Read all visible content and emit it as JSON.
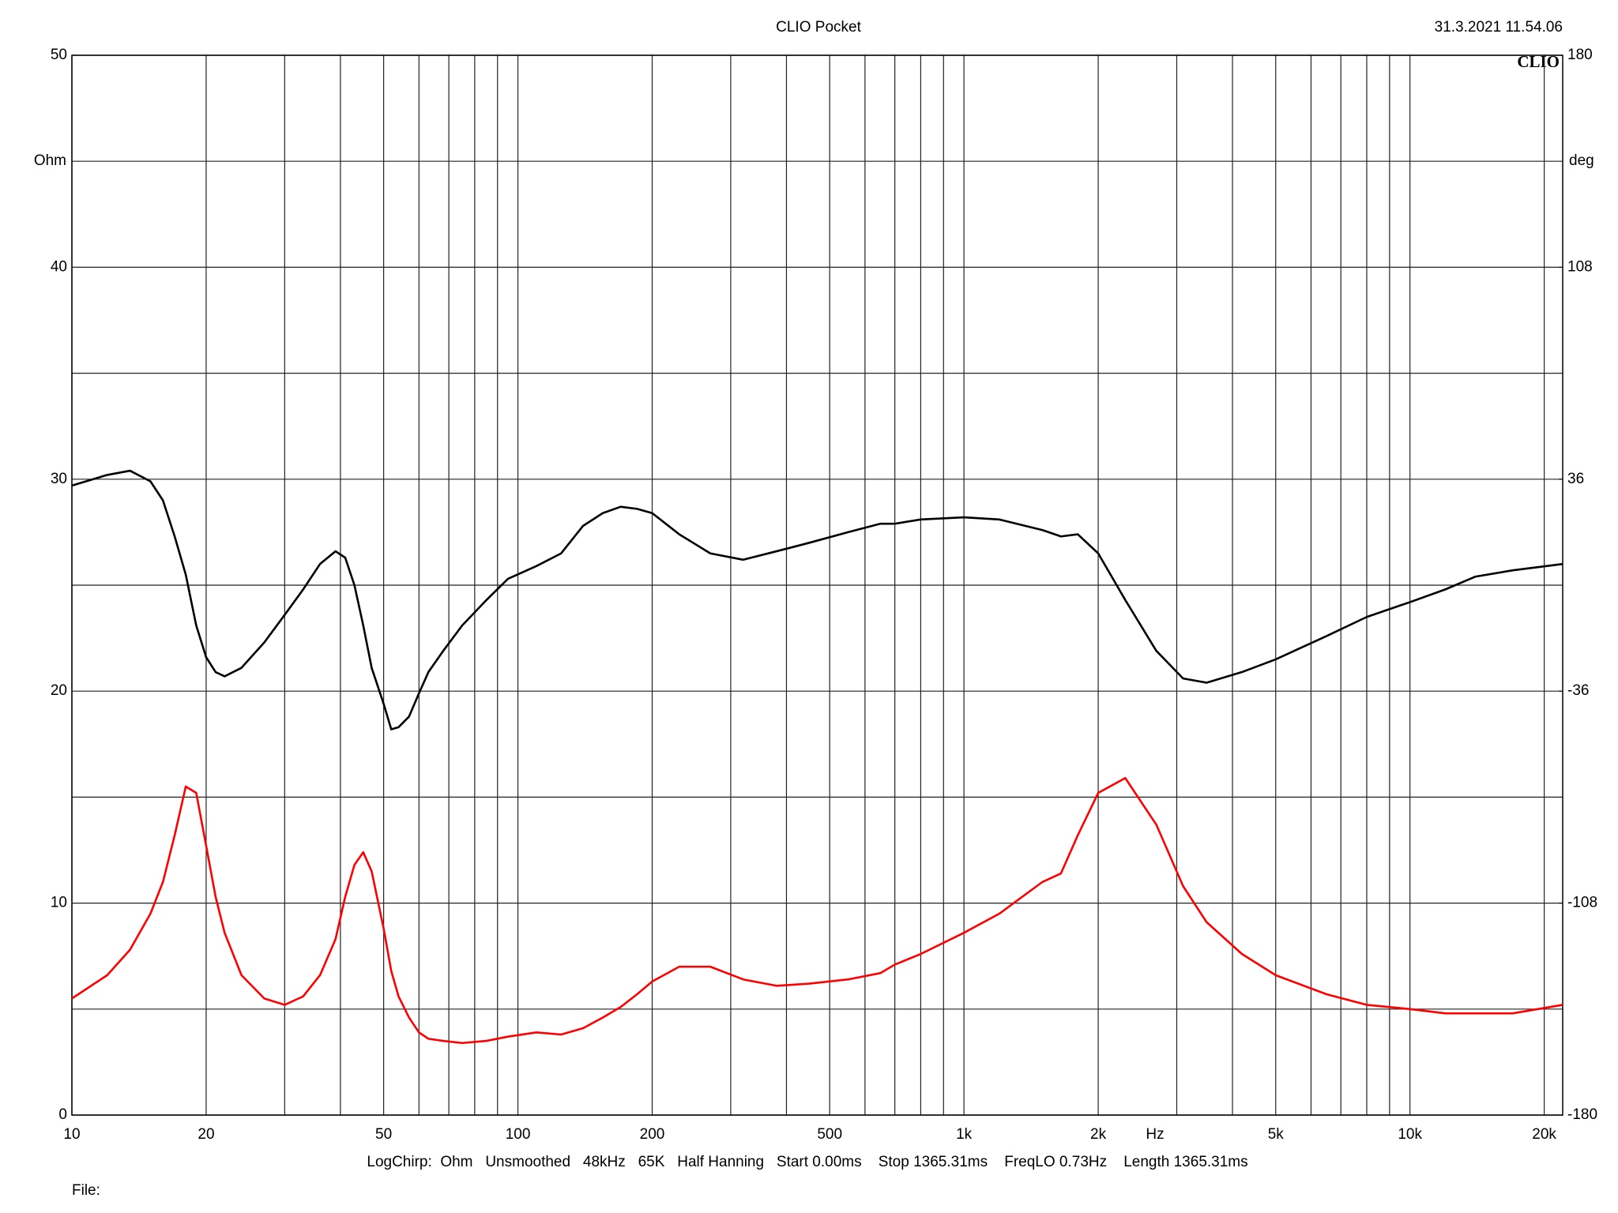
{
  "chart_data": {
    "type": "line",
    "title": "CLIO Pocket",
    "timestamp": "31.3.2021 11.54.06",
    "logo": "CLIO",
    "y_label": "Ohm",
    "y2_label": "deg",
    "x_label": "Hz",
    "footer": "LogChirp:  Ohm   Unsmoothed   48kHz   65K   Half Hanning   Start 0.00ms    Stop 1365.31ms    FreqLO 0.73Hz    Length 1365.31ms",
    "file_label": "File:",
    "xscale": "log",
    "grid": true,
    "xlim": [
      10,
      22000
    ],
    "xticks": [
      10,
      20,
      50,
      100,
      200,
      500,
      {
        "value": 1000,
        "label": "1k"
      },
      {
        "value": 2000,
        "label": "2k"
      },
      {
        "value": 5000,
        "label": "5k"
      },
      {
        "value": 10000,
        "label": "10k"
      },
      {
        "value": 20000,
        "label": "20k"
      }
    ],
    "xgrid": [
      30,
      40,
      60,
      70,
      80,
      90,
      300,
      400,
      600,
      700,
      800,
      900,
      3000,
      4000,
      6000,
      7000,
      8000,
      9000
    ],
    "ylim": [
      0,
      50
    ],
    "yticks": [
      0,
      10,
      20,
      30,
      40,
      50
    ],
    "ygrid": [
      5,
      15,
      25,
      35,
      45
    ],
    "y2lim": [
      -180,
      180
    ],
    "y2ticks": [
      -180,
      -108,
      -36,
      36,
      108,
      180
    ],
    "x": [
      10,
      12,
      13.5,
      15,
      16,
      17,
      18,
      19,
      20,
      21,
      22,
      24,
      27,
      30,
      33,
      36,
      39,
      41,
      43,
      45,
      47,
      50,
      52,
      54,
      57,
      60,
      63,
      68,
      75,
      85,
      95,
      110,
      125,
      140,
      155,
      170,
      185,
      200,
      230,
      270,
      320,
      380,
      450,
      550,
      650,
      700,
      800,
      1000,
      1200,
      1500,
      1650,
      1800,
      2000,
      2300,
      2700,
      3100,
      3500,
      4200,
      5000,
      6500,
      8000,
      10000,
      12000,
      14000,
      17000,
      22000
    ],
    "series": [
      {
        "color": "#000000",
        "values": [
          29.7,
          30.2,
          30.4,
          29.9,
          29.0,
          27.3,
          25.5,
          23.1,
          21.6,
          20.9,
          20.7,
          21.1,
          22.3,
          23.6,
          24.8,
          26.0,
          26.6,
          26.3,
          25.0,
          23.1,
          21.1,
          19.4,
          18.2,
          18.3,
          18.8,
          19.9,
          20.9,
          21.9,
          23.1,
          24.3,
          25.3,
          25.9,
          26.5,
          27.8,
          28.4,
          28.7,
          28.6,
          28.4,
          27.4,
          26.5,
          26.2,
          26.6,
          27.0,
          27.5,
          27.9,
          27.9,
          28.1,
          28.2,
          28.1,
          27.6,
          27.3,
          27.4,
          26.5,
          24.3,
          21.9,
          20.6,
          20.4,
          20.9,
          21.5,
          22.6,
          23.5,
          24.2,
          24.8,
          25.4,
          25.7,
          26.0
        ]
      },
      {
        "color": "#ff0000",
        "values": [
          5.5,
          6.6,
          7.8,
          9.5,
          11.0,
          13.2,
          15.5,
          15.2,
          12.7,
          10.3,
          8.6,
          6.6,
          5.5,
          5.2,
          5.6,
          6.6,
          8.3,
          10.3,
          11.8,
          12.4,
          11.5,
          8.8,
          6.8,
          5.6,
          4.6,
          3.9,
          3.6,
          3.5,
          3.4,
          3.5,
          3.7,
          3.9,
          3.8,
          4.1,
          4.6,
          5.1,
          5.7,
          6.3,
          7.0,
          7.0,
          6.4,
          6.1,
          6.2,
          6.4,
          6.7,
          7.1,
          7.6,
          8.6,
          9.5,
          11.0,
          11.4,
          13.2,
          15.2,
          15.9,
          13.7,
          10.8,
          9.1,
          7.6,
          6.6,
          5.7,
          5.2,
          5.0,
          4.8,
          4.8,
          4.8,
          5.2
        ]
      }
    ]
  }
}
